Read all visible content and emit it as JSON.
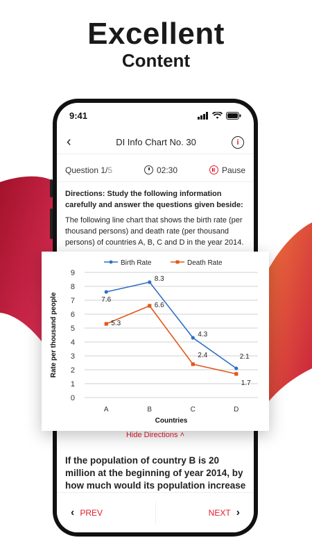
{
  "promo": {
    "headline": "Excellent",
    "subheadline": "Content"
  },
  "status_bar": {
    "time": "9:41"
  },
  "header": {
    "title": "DI Info Chart No. 30",
    "info_icon_label": "i"
  },
  "question_bar": {
    "question_label": "Question 1/",
    "question_total": "5",
    "timer": "02:30",
    "pause_label": "Pause"
  },
  "directions": {
    "title": "Directions: Study the following information carefully and answer the questions given beside:",
    "body": "The following line chart that shows the birth rate (per thousand persons) and death rate (per thousand persons) of countries A, B, C and D in the year 2014.",
    "hide_label": "Hide Directions ˄"
  },
  "question_text": "If the population of country B is 20 million at the beginning of year 2014, by how much would its population increase in",
  "nav": {
    "prev_label": "PREV",
    "next_label": "NEXT"
  },
  "colors": {
    "accent": "#e21b2c",
    "birth": "#2f6fc4",
    "death": "#e0581a"
  },
  "chart_data": {
    "type": "line",
    "categories": [
      "A",
      "B",
      "C",
      "D"
    ],
    "series": [
      {
        "name": "Birth Rate",
        "values": [
          7.6,
          8.3,
          4.3,
          2.1
        ]
      },
      {
        "name": "Death Rate",
        "values": [
          5.3,
          6.6,
          2.4,
          1.7
        ]
      }
    ],
    "xlabel": "Countries",
    "ylabel": "Rate per thousand people",
    "ylim": [
      0,
      9
    ],
    "yticks": [
      0,
      1,
      2,
      3,
      4,
      5,
      6,
      7,
      8,
      9
    ],
    "grid": true,
    "legend": "top"
  }
}
